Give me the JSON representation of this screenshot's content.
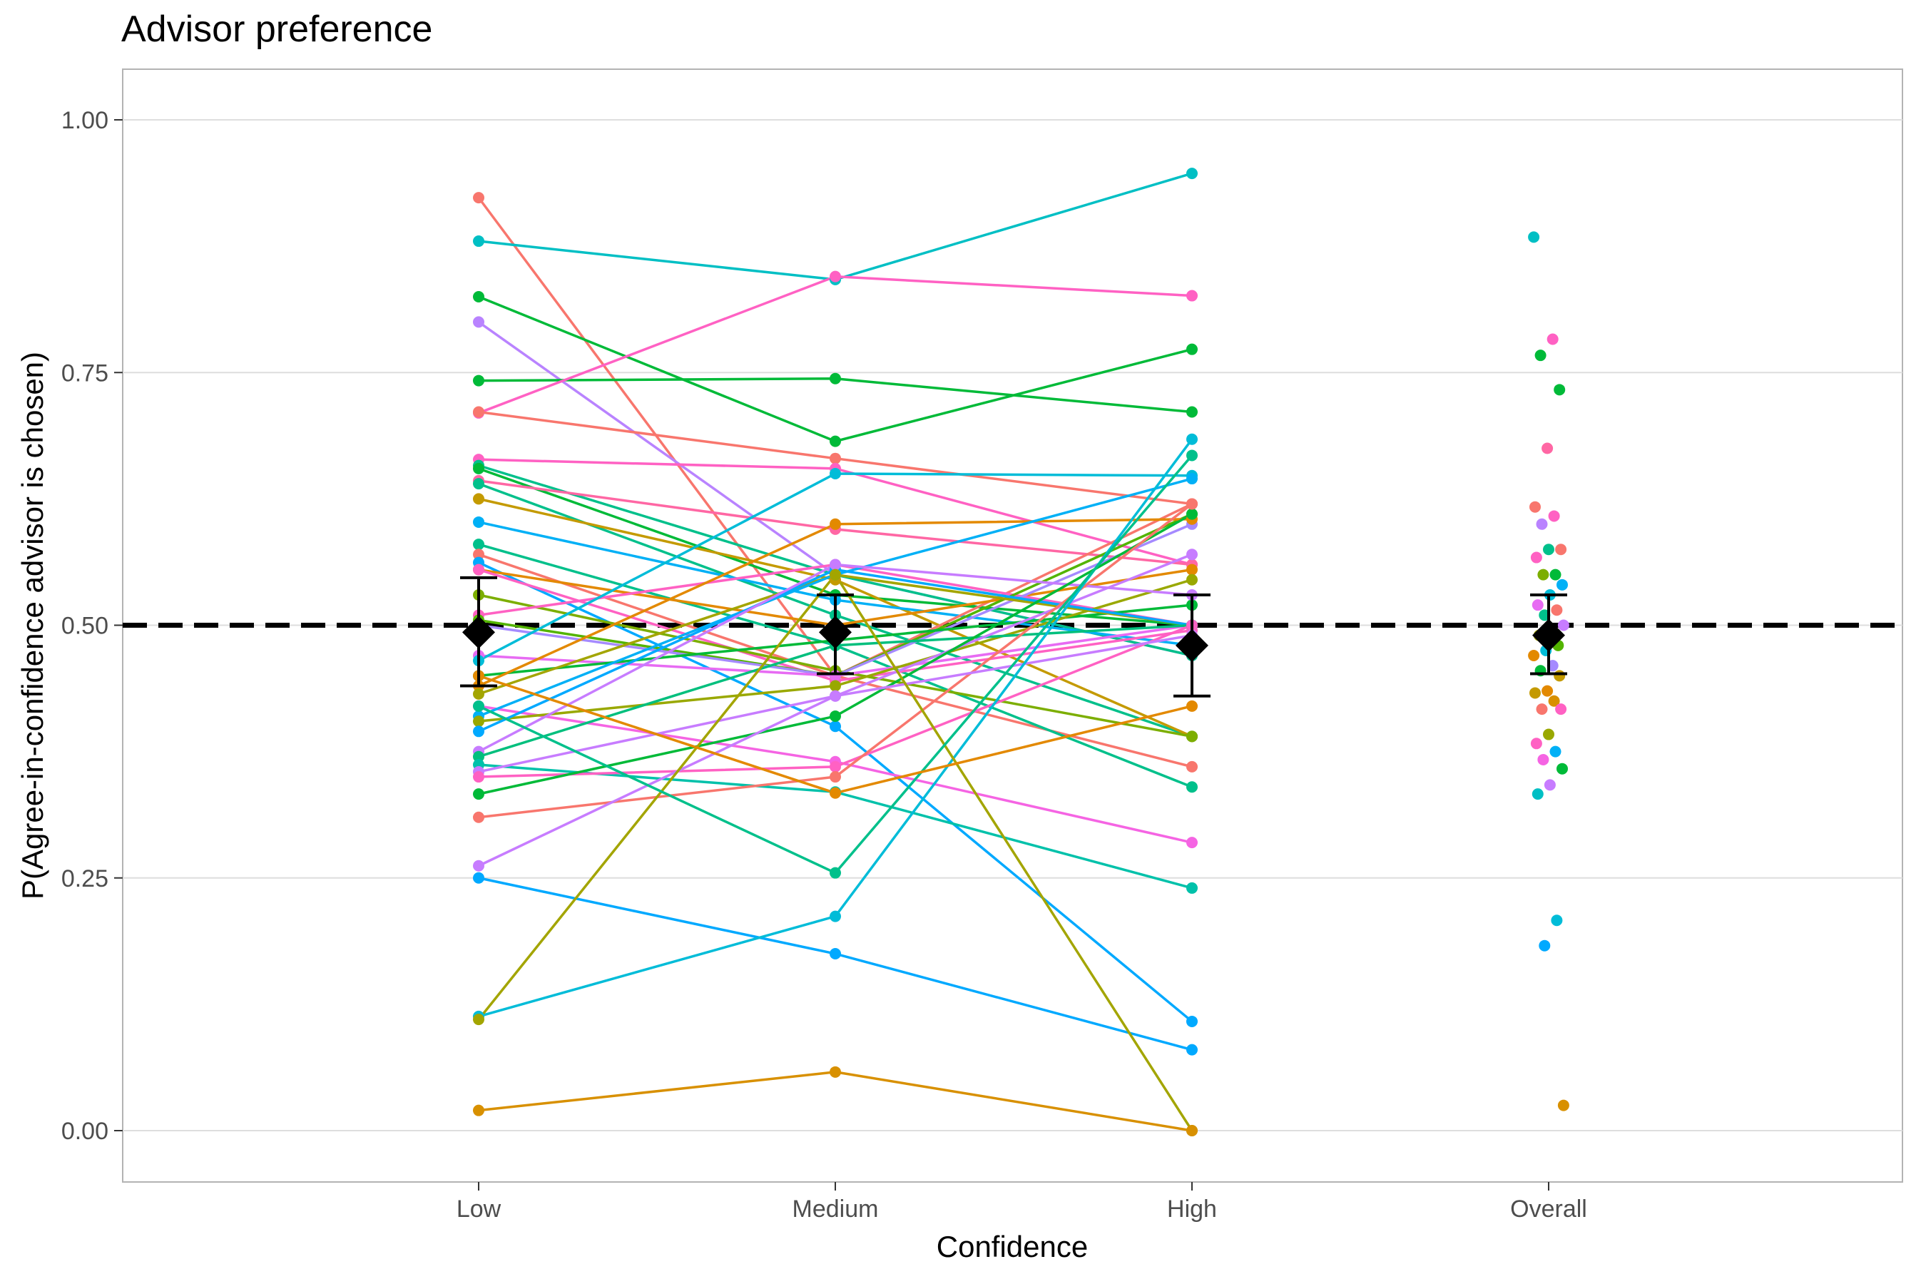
{
  "chart_data": {
    "type": "line",
    "title": "Advisor preference",
    "xlabel": "Confidence",
    "ylabel": "P(Agree-in-confidence advisor is chosen)",
    "categories": [
      "Low",
      "Medium",
      "High",
      "Overall"
    ],
    "ylim": [
      -0.05,
      1.05
    ],
    "yticks": [
      0,
      0.25,
      0.5,
      0.75,
      1
    ],
    "ytick_labels": [
      "0.00",
      "0.25",
      "0.50",
      "0.75",
      "1.00"
    ],
    "grid": true,
    "reference_line": {
      "y": 0.5,
      "style": "dashed"
    },
    "participants": [
      {
        "color": "#F8766D",
        "values": [
          0.923,
          0.45,
          0.36
        ]
      },
      {
        "color": "#00BFC4",
        "values": [
          0.88,
          0.842,
          0.947
        ]
      },
      {
        "color": "#00BA38",
        "values": [
          0.825,
          0.682,
          0.773
        ]
      },
      {
        "color": "#B983FF",
        "values": [
          0.8,
          0.55,
          0.47
        ]
      },
      {
        "color": "#00BA38",
        "values": [
          0.742,
          0.744,
          0.711
        ]
      },
      {
        "color": "#FF61C3",
        "values": [
          0.71,
          0.845,
          0.826
        ]
      },
      {
        "color": "#F8766D",
        "values": [
          0.711,
          0.665,
          0.62
        ]
      },
      {
        "color": "#FF61C3",
        "values": [
          0.664,
          0.655,
          0.56
        ]
      },
      {
        "color": "#00C08B",
        "values": [
          0.658,
          0.55,
          0.47
        ]
      },
      {
        "color": "#00BA38",
        "values": [
          0.655,
          0.53,
          0.5
        ]
      },
      {
        "color": "#FF67A4",
        "values": [
          0.643,
          0.595,
          0.56
        ]
      },
      {
        "color": "#00C08B",
        "values": [
          0.64,
          0.51,
          0.39
        ]
      },
      {
        "color": "#C49A00",
        "values": [
          0.625,
          0.545,
          0.39
        ]
      },
      {
        "color": "#00B0F6",
        "values": [
          0.602,
          0.525,
          0.48
        ]
      },
      {
        "color": "#00C08B",
        "values": [
          0.58,
          0.48,
          0.34
        ]
      },
      {
        "color": "#F8766D",
        "values": [
          0.57,
          0.45,
          0.62
        ]
      },
      {
        "color": "#00A9FF",
        "values": [
          0.562,
          0.4,
          0.108
        ]
      },
      {
        "color": "#E38900",
        "values": [
          0.555,
          0.5,
          0.555
        ]
      },
      {
        "color": "#FF61C3",
        "values": [
          0.555,
          0.445,
          0.495
        ]
      },
      {
        "color": "#7CAE00",
        "values": [
          0.53,
          0.455,
          0.39
        ]
      },
      {
        "color": "#FF61C3",
        "values": [
          0.51,
          0.56,
          0.5
        ]
      },
      {
        "color": "#53B400",
        "values": [
          0.505,
          0.45,
          0.61
        ]
      },
      {
        "color": "#A58AFF",
        "values": [
          0.5,
          0.45,
          0.6
        ]
      },
      {
        "color": "#E76BF3",
        "values": [
          0.47,
          0.45,
          0.5
        ]
      },
      {
        "color": "#00BCD8",
        "values": [
          0.465,
          0.65,
          0.648
        ]
      },
      {
        "color": "#00BA38",
        "values": [
          0.45,
          0.485,
          0.52
        ]
      },
      {
        "color": "#E38900",
        "values": [
          0.44,
          0.6,
          0.605
        ]
      },
      {
        "color": "#A3A500",
        "values": [
          0.432,
          0.55,
          0.5
        ]
      },
      {
        "color": "#F564E3",
        "values": [
          0.42,
          0.365,
          0.285
        ]
      },
      {
        "color": "#00B0F6",
        "values": [
          0.41,
          0.55,
          0.645
        ]
      },
      {
        "color": "#99A800",
        "values": [
          0.405,
          0.44,
          0.545
        ]
      },
      {
        "color": "#00A9FF",
        "values": [
          0.395,
          0.555,
          0.5
        ]
      },
      {
        "color": "#C77CFF",
        "values": [
          0.375,
          0.56,
          0.53
        ]
      },
      {
        "color": "#00BF7D",
        "values": [
          0.37,
          0.48,
          0.5
        ]
      },
      {
        "color": "#00C1AA",
        "values": [
          0.362,
          0.335,
          0.24
        ]
      },
      {
        "color": "#C77CFF",
        "values": [
          0.355,
          0.43,
          0.57
        ]
      },
      {
        "color": "#FF61C3",
        "values": [
          0.35,
          0.36,
          0.5
        ]
      },
      {
        "color": "#00BA38",
        "values": [
          0.333,
          0.41,
          0.61
        ]
      },
      {
        "color": "#F8766D",
        "values": [
          0.31,
          0.35,
          0.62
        ]
      },
      {
        "color": "#C77CFF",
        "values": [
          0.262,
          0.43,
          0.49
        ]
      },
      {
        "color": "#00A9FF",
        "values": [
          0.25,
          0.175,
          0.08
        ]
      },
      {
        "color": "#00BCD8",
        "values": [
          0.113,
          0.212,
          0.684
        ]
      },
      {
        "color": "#A3A500",
        "values": [
          0.11,
          0.55,
          0.0
        ]
      },
      {
        "color": "#D89000",
        "values": [
          0.02,
          0.058,
          0.0
        ]
      },
      {
        "color": "#00C08B",
        "values": [
          0.42,
          0.255,
          0.668
        ]
      },
      {
        "color": "#E38900",
        "values": [
          0.45,
          0.334,
          0.42
        ]
      }
    ],
    "overall_points": [
      {
        "color": "#00BFC4",
        "value": 0.884
      },
      {
        "color": "#FF61C3",
        "value": 0.783
      },
      {
        "color": "#00BA38",
        "value": 0.767
      },
      {
        "color": "#00BA38",
        "value": 0.733
      },
      {
        "color": "#FF67A4",
        "value": 0.675
      },
      {
        "color": "#F8766D",
        "value": 0.617
      },
      {
        "color": "#FF61C3",
        "value": 0.608
      },
      {
        "color": "#B983FF",
        "value": 0.6
      },
      {
        "color": "#F8766D",
        "value": 0.575
      },
      {
        "color": "#00C08B",
        "value": 0.575
      },
      {
        "color": "#FF61C3",
        "value": 0.567
      },
      {
        "color": "#00BA38",
        "value": 0.55
      },
      {
        "color": "#7CAE00",
        "value": 0.55
      },
      {
        "color": "#00B0F6",
        "value": 0.54
      },
      {
        "color": "#00BCD8",
        "value": 0.53
      },
      {
        "color": "#E76BF3",
        "value": 0.52
      },
      {
        "color": "#F8766D",
        "value": 0.515
      },
      {
        "color": "#00C08B",
        "value": 0.51
      },
      {
        "color": "#C77CFF",
        "value": 0.5
      },
      {
        "color": "#00A9FF",
        "value": 0.495
      },
      {
        "color": "#A3A500",
        "value": 0.49
      },
      {
        "color": "#53B400",
        "value": 0.48
      },
      {
        "color": "#00BCD8",
        "value": 0.475
      },
      {
        "color": "#E38900",
        "value": 0.47
      },
      {
        "color": "#A58AFF",
        "value": 0.46
      },
      {
        "color": "#00BA38",
        "value": 0.455
      },
      {
        "color": "#C49A00",
        "value": 0.45
      },
      {
        "color": "#E38900",
        "value": 0.435
      },
      {
        "color": "#C49A00",
        "value": 0.433
      },
      {
        "color": "#D89000",
        "value": 0.425
      },
      {
        "color": "#F8766D",
        "value": 0.417
      },
      {
        "color": "#FF61C3",
        "value": 0.417
      },
      {
        "color": "#99A800",
        "value": 0.392
      },
      {
        "color": "#FF61C3",
        "value": 0.383
      },
      {
        "color": "#00B0F6",
        "value": 0.375
      },
      {
        "color": "#F564E3",
        "value": 0.367
      },
      {
        "color": "#00BA38",
        "value": 0.358
      },
      {
        "color": "#C77CFF",
        "value": 0.342
      },
      {
        "color": "#00BFC4",
        "value": 0.333
      },
      {
        "color": "#00BCD8",
        "value": 0.208
      },
      {
        "color": "#00A9FF",
        "value": 0.183
      },
      {
        "color": "#D89000",
        "value": 0.025
      }
    ],
    "summary": [
      {
        "category": "Low",
        "mean": 0.493,
        "lower": 0.44,
        "upper": 0.547
      },
      {
        "category": "Medium",
        "mean": 0.493,
        "lower": 0.452,
        "upper": 0.53
      },
      {
        "category": "High",
        "mean": 0.48,
        "lower": 0.43,
        "upper": 0.53
      },
      {
        "category": "Overall",
        "mean": 0.49,
        "lower": 0.452,
        "upper": 0.53
      }
    ]
  }
}
